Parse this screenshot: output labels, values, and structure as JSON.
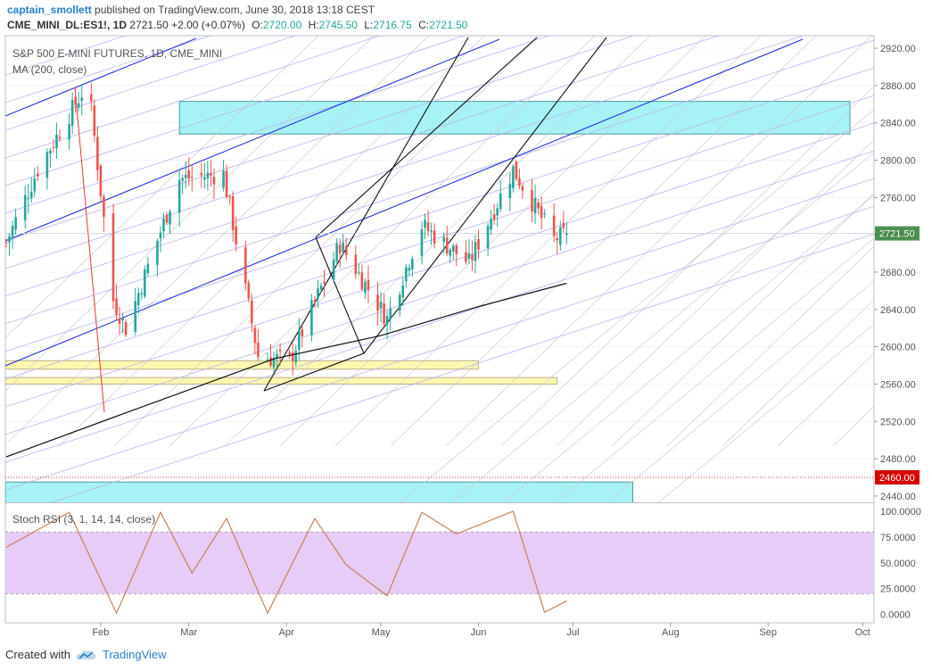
{
  "header": {
    "author": "captain_smollett",
    "published": " published on TradingView.com, June 30, 2018 13:18 CEST",
    "symbol": "CME_MINI_DL:ES1!, 1D",
    "last": "2721.50",
    "change": "+2.00 (+0.07%)",
    "o_label": "O:",
    "o": "2720.00",
    "h_label": "H:",
    "h": "2745.50",
    "l_label": "L:",
    "l": "2716.75",
    "c_label": "C:",
    "c": "2721.50"
  },
  "panes": {
    "main_title": "S&P 500 E-MINI FUTURES, 1D, CME_MINI",
    "ma_title": "MA (200, close)",
    "rsi_title": "Stoch RSI (3, 1, 14, 14, close)"
  },
  "footer": {
    "created": "Created with",
    "brand": "TradingView"
  },
  "colors": {
    "up": "#26a69a",
    "down": "#ef5350",
    "cyan_zone": "#a6f2f5",
    "yellow_zone": "#fff8b0",
    "channel_blue": "#2233dd",
    "pitchfork": "#111111",
    "rsi_line": "#c87a4a",
    "rsi_band": "#e6ccf7"
  },
  "chart_data": [
    {
      "type": "candlestick",
      "title": "S&P 500 E-MINI FUTURES, 1D, CME_MINI",
      "x_ticks": [
        "Feb",
        "Mar",
        "Apr",
        "May",
        "Jun",
        "Jul",
        "Aug",
        "Sep",
        "Oct"
      ],
      "y_ticks": [
        "2440.00",
        "2480.00",
        "2520.00",
        "2560.00",
        "2600.00",
        "2640.00",
        "2680.00",
        "2720.00",
        "2760.00",
        "2800.00",
        "2840.00",
        "2880.00",
        "2920.00"
      ],
      "ylim": [
        2428,
        2935
      ],
      "last_price_label": "2721.50",
      "line_price_label": "2460.00",
      "ohlc_anchor": [
        {
          "date": "2018-01-02",
          "close": 2712
        },
        {
          "date": "2018-01-12",
          "close": 2790
        },
        {
          "date": "2018-01-26",
          "close": 2872
        },
        {
          "date": "2018-01-29",
          "close": 2854
        },
        {
          "date": "2018-02-05",
          "close": 2650
        },
        {
          "date": "2018-02-09",
          "close": 2620
        },
        {
          "date": "2018-02-26",
          "close": 2780
        },
        {
          "date": "2018-03-12",
          "close": 2785
        },
        {
          "date": "2018-03-23",
          "close": 2590
        },
        {
          "date": "2018-04-02",
          "close": 2585
        },
        {
          "date": "2018-04-18",
          "close": 2710
        },
        {
          "date": "2018-05-03",
          "close": 2630
        },
        {
          "date": "2018-05-14",
          "close": 2730
        },
        {
          "date": "2018-05-29",
          "close": 2690
        },
        {
          "date": "2018-06-12",
          "close": 2790
        },
        {
          "date": "2018-06-25",
          "close": 2715
        },
        {
          "date": "2018-06-29",
          "close": 2721.5
        }
      ],
      "series": [
        {
          "name": "MA (200, close)",
          "x": [
            "2018-01-02",
            "2018-02-08",
            "2018-03-28",
            "2018-05-01",
            "2018-06-01",
            "2018-06-29"
          ],
          "y": [
            2482,
            2528,
            2587,
            2612,
            2643,
            2668
          ]
        }
      ],
      "zones": [
        {
          "kind": "supply",
          "price_low": 2828,
          "price_high": 2863,
          "from": "2018-02-26",
          "to": "2018-09-27"
        },
        {
          "kind": "support",
          "price_low": 2576,
          "price_high": 2585,
          "from": "2018-01-01",
          "to": "2018-06-01"
        },
        {
          "kind": "support",
          "price_low": 2560,
          "price_high": 2567,
          "from": "2018-01-01",
          "to": "2018-06-26"
        },
        {
          "kind": "demand",
          "price_low": 2428,
          "price_high": 2455,
          "from": "2018-01-01",
          "to": "2018-07-20"
        }
      ]
    },
    {
      "type": "line",
      "title": "Stoch RSI (3, 1, 14, 14, close)",
      "y_ticks": [
        "100.0000",
        "75.0000",
        "50.0000",
        "25.0000",
        "0.0000"
      ],
      "ylim": [
        -10,
        104
      ],
      "band": [
        20,
        80
      ],
      "series": [
        {
          "name": "Stoch RSI",
          "x": [
            "2018-01-02",
            "2018-01-22",
            "2018-02-06",
            "2018-02-20",
            "2018-03-02",
            "2018-03-13",
            "2018-03-26",
            "2018-04-10",
            "2018-04-20",
            "2018-05-03",
            "2018-05-14",
            "2018-05-25",
            "2018-06-12",
            "2018-06-22",
            "2018-06-29"
          ],
          "y": [
            65,
            99,
            1,
            99,
            40,
            93,
            1,
            93,
            48,
            18,
            99,
            78,
            100,
            2,
            13
          ]
        }
      ]
    }
  ]
}
